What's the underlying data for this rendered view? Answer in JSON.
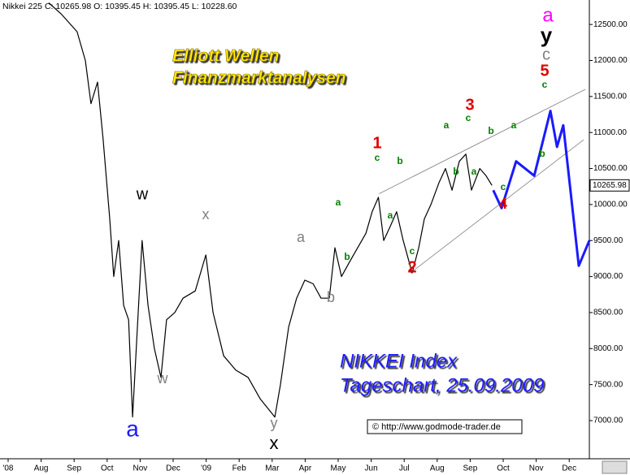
{
  "chart_data": {
    "type": "line",
    "header": "Nikkei 225 C: 10265.98 O: 10395.45 H: 10395.45 L: 10228.60",
    "title_lines": [
      "Elliott Wellen",
      "Finanzmarktanalysen"
    ],
    "subtitle_lines": [
      "NIKKEI Index",
      "Tageschart, 25.09.2009"
    ],
    "source": "© http://www.godmode-trader.de",
    "xlim": [
      -0.246,
      17.61
    ],
    "xticks": [
      {
        "value": 0,
        "label": "'08"
      },
      {
        "value": 1,
        "label": "Aug"
      },
      {
        "value": 2,
        "label": "Sep"
      },
      {
        "value": 3,
        "label": "Oct"
      },
      {
        "value": 4,
        "label": "Nov"
      },
      {
        "value": 5,
        "label": "Dec"
      },
      {
        "value": 6,
        "label": "'09"
      },
      {
        "value": 7,
        "label": "Feb"
      },
      {
        "value": 8,
        "label": "Mar"
      },
      {
        "value": 9,
        "label": "Apr"
      },
      {
        "value": 10,
        "label": "May"
      },
      {
        "value": 11,
        "label": "Jun"
      },
      {
        "value": 12,
        "label": "Jul"
      },
      {
        "value": 13,
        "label": "Aug"
      },
      {
        "value": 14,
        "label": "Sep"
      },
      {
        "value": 15,
        "label": "Oct"
      },
      {
        "value": 16,
        "label": "Nov"
      },
      {
        "value": 17,
        "label": "Dec"
      }
    ],
    "ylim": [
      6470,
      12840
    ],
    "yticks": [
      {
        "value": 7000,
        "label": "7000.00"
      },
      {
        "value": 7500,
        "label": "7500.00"
      },
      {
        "value": 8000,
        "label": "8000.00"
      },
      {
        "value": 8500,
        "label": "8500.00"
      },
      {
        "value": 9000,
        "label": "9000.00"
      },
      {
        "value": 9500,
        "label": "9500.00"
      },
      {
        "value": 10000,
        "label": "10000.00"
      },
      {
        "value": 10500,
        "label": "10500.00"
      },
      {
        "value": 11000,
        "label": "11000.00"
      },
      {
        "value": 11500,
        "label": "11500.00"
      },
      {
        "value": 12000,
        "label": "12000.00"
      },
      {
        "value": 12500,
        "label": "12500.00"
      }
    ],
    "last_price": {
      "value": 10265.98,
      "label": "10265.98"
    },
    "series": [
      {
        "color": "#000000",
        "x": [
          1.23,
          1.6,
          2.09,
          2.34,
          2.51,
          2.71,
          2.88,
          3.08,
          3.2,
          3.35,
          3.5,
          3.65,
          3.77,
          3.94,
          4.06,
          4.24,
          4.43,
          4.63,
          4.8,
          5.05,
          5.3,
          5.67,
          5.99,
          6.21,
          6.53,
          6.9,
          7.27,
          7.64,
          8.08,
          8.25,
          8.5,
          8.74,
          8.99,
          9.24,
          9.48,
          9.73,
          9.9,
          10.1,
          10.34,
          10.59,
          10.84,
          11.03,
          11.22,
          11.38,
          11.58,
          11.77,
          11.97,
          12.24,
          12.44,
          12.61,
          12.81,
          13.05,
          13.25,
          13.45,
          13.67,
          13.87,
          14.04,
          14.29,
          14.48,
          14.66
        ],
        "values": [
          12800,
          12650,
          12400,
          12000,
          11400,
          11700,
          10900,
          9800,
          9000,
          9500,
          8600,
          8400,
          7050,
          8500,
          9500,
          8600,
          8000,
          7600,
          8400,
          8500,
          8700,
          8800,
          9300,
          8500,
          7900,
          7700,
          7600,
          7300,
          7050,
          7500,
          8300,
          8700,
          8950,
          8900,
          8700,
          8700,
          9400,
          9000,
          9200,
          9400,
          9600,
          9900,
          10100,
          9500,
          9700,
          9900,
          9500,
          9050,
          9400,
          9800,
          10000,
          10300,
          10500,
          10200,
          10600,
          10700,
          10200,
          10500,
          10400,
          10265.98
        ]
      },
      {
        "color": "#1a1aff",
        "x": [
          14.7,
          14.95,
          15.39,
          15.94,
          16.43,
          16.63,
          16.82,
          17.29,
          17.61
        ],
        "values": [
          10200,
          9950,
          10600,
          10400,
          11300,
          10800,
          11100,
          9150,
          9500
        ]
      }
    ],
    "trendlines": [
      {
        "color": "#808080",
        "x": [
          11.24,
          17.49
        ],
        "values": [
          10150,
          11600
        ]
      },
      {
        "color": "#808080",
        "x": [
          12.19,
          17.44
        ],
        "values": [
          9050,
          10900
        ]
      }
    ],
    "wave_labels": [
      {
        "text": "a",
        "color": "#ff00ff"
      },
      {
        "text": "y",
        "color": "#000000"
      },
      {
        "text": "c",
        "color": "#808080"
      },
      {
        "text": "5",
        "color": "#e00000"
      },
      {
        "text": "c",
        "color": "#008000"
      },
      {
        "text": "3",
        "color": "#e00000"
      },
      {
        "text": "c",
        "color": "#008000"
      },
      {
        "text": "a",
        "color": "#008000"
      },
      {
        "text": "b",
        "color": "#008000"
      },
      {
        "text": "a",
        "color": "#008000"
      },
      {
        "text": "b",
        "color": "#008000"
      },
      {
        "text": "b",
        "color": "#008000"
      },
      {
        "text": "a",
        "color": "#008000"
      },
      {
        "text": "c",
        "color": "#008000"
      },
      {
        "text": "4",
        "color": "#e00000"
      },
      {
        "text": "1",
        "color": "#e00000"
      },
      {
        "text": "c",
        "color": "#008000"
      },
      {
        "text": "b",
        "color": "#008000"
      },
      {
        "text": "a",
        "color": "#008000"
      },
      {
        "text": "a",
        "color": "#008000"
      },
      {
        "text": "b",
        "color": "#008000"
      },
      {
        "text": "c",
        "color": "#008000"
      },
      {
        "text": "2",
        "color": "#e00000"
      },
      {
        "text": "a",
        "color": "#808080"
      },
      {
        "text": "b",
        "color": "#808080"
      },
      {
        "text": "x",
        "color": "#808080"
      },
      {
        "text": "w",
        "color": "#000000"
      },
      {
        "text": "w",
        "color": "#808080"
      },
      {
        "text": "a",
        "color": "#1a1aff"
      },
      {
        "text": "y",
        "color": "#808080"
      },
      {
        "text": "x",
        "color": "#000000"
      }
    ]
  }
}
